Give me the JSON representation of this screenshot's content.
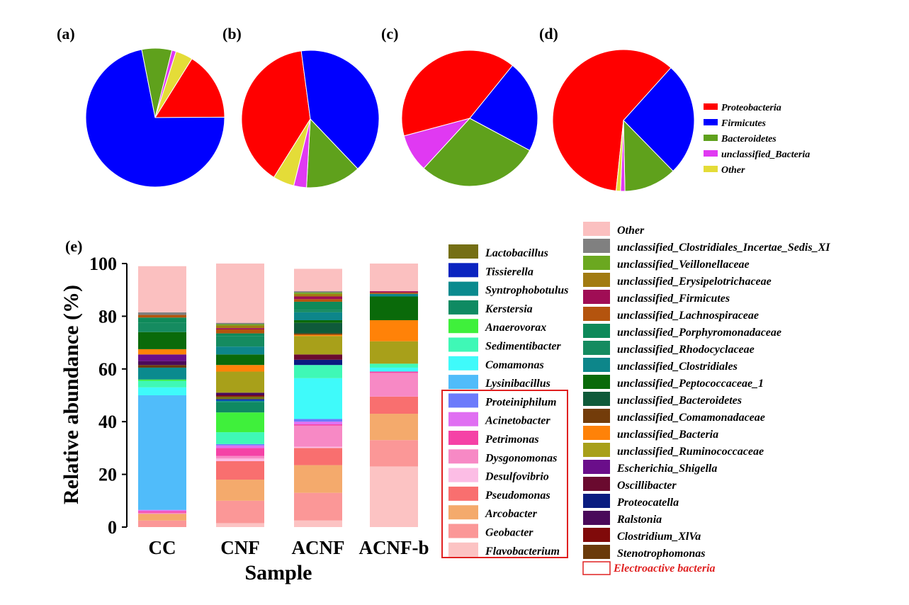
{
  "panel_labels": [
    "(a)",
    "(b)",
    "(c)",
    "(d)",
    "(e)"
  ],
  "chart_data": [
    {
      "type": "pie",
      "panel": "(a)",
      "labels": [
        "Proteobacteria",
        "Firmicutes",
        "Bacteroidetes",
        "unclassified_Bacteria",
        "Other"
      ],
      "values": [
        16,
        72,
        7,
        1,
        4
      ]
    },
    {
      "type": "pie",
      "panel": "(b)",
      "labels": [
        "Proteobacteria",
        "Firmicutes",
        "Bacteroidetes",
        "unclassified_Bacteria",
        "Other"
      ],
      "values": [
        39,
        40,
        13,
        3,
        5
      ]
    },
    {
      "type": "pie",
      "panel": "(c)",
      "labels": [
        "Proteobacteria",
        "Firmicutes",
        "Bacteroidetes",
        "unclassified_Bacteria",
        "Other"
      ],
      "values": [
        40,
        22,
        29,
        9,
        0
      ]
    },
    {
      "type": "pie",
      "panel": "(d)",
      "labels": [
        "Proteobacteria",
        "Firmicutes",
        "Bacteroidetes",
        "unclassified_Bacteria",
        "Other"
      ],
      "values": [
        60,
        26,
        12,
        1,
        1
      ]
    },
    {
      "type": "bar",
      "stacked": true,
      "panel": "(e)",
      "xlabel": "Sample",
      "ylabel": "Relative abundance (%)",
      "ylim": [
        0,
        100
      ],
      "yticks": [
        0,
        20,
        40,
        60,
        80,
        100
      ],
      "categories": [
        "CC",
        "CNF",
        "ACNF",
        "ACNF-b"
      ],
      "series": [
        {
          "name": "Flavobacterium",
          "values": [
            0,
            1.5,
            2.5,
            23
          ]
        },
        {
          "name": "Geobacter",
          "values": [
            2.5,
            8.5,
            10.5,
            10
          ]
        },
        {
          "name": "Arcobacter",
          "values": [
            2.5,
            8,
            10.5,
            10
          ]
        },
        {
          "name": "Pseudomonas",
          "values": [
            0,
            7,
            6.5,
            6.5
          ]
        },
        {
          "name": "Desulfovibrio",
          "values": [
            0,
            1,
            0.5,
            0
          ]
        },
        {
          "name": "Dysgonomonas",
          "values": [
            0.5,
            1,
            8,
            9
          ]
        },
        {
          "name": "Petrimonas",
          "values": [
            0.5,
            3,
            0.5,
            0.5
          ]
        },
        {
          "name": "Acinetobacter",
          "values": [
            0.5,
            1,
            1,
            0
          ]
        },
        {
          "name": "Proteiniphilum",
          "values": [
            0,
            0.5,
            1,
            0
          ]
        },
        {
          "name": "Lysinibacillus",
          "values": [
            43.5,
            0,
            0,
            0
          ]
        },
        {
          "name": "Comamonas",
          "values": [
            3,
            0,
            15.5,
            1.5
          ]
        },
        {
          "name": "Sedimentibacter",
          "values": [
            2.5,
            4.5,
            5,
            1.5
          ]
        },
        {
          "name": "Anaerovorax",
          "values": [
            0.5,
            7.5,
            0,
            0
          ]
        },
        {
          "name": "Kerstersia",
          "values": [
            0,
            4,
            0,
            0
          ]
        },
        {
          "name": "Syntrophobotulus",
          "values": [
            4.5,
            0.5,
            0,
            0
          ]
        },
        {
          "name": "Tissierella",
          "values": [
            0,
            0.5,
            0,
            0
          ]
        },
        {
          "name": "Lactobacillus",
          "values": [
            0,
            1,
            0,
            0
          ]
        },
        {
          "name": "Stenotrophomonas",
          "values": [
            1,
            0,
            0,
            0
          ]
        },
        {
          "name": "Clostridium_XlVa",
          "values": [
            0,
            0.5,
            0,
            0
          ]
        },
        {
          "name": "Ralstonia",
          "values": [
            1.5,
            1,
            0,
            0
          ]
        },
        {
          "name": "Proteocatella",
          "values": [
            0,
            0,
            2,
            0
          ]
        },
        {
          "name": "Oscillibacter",
          "values": [
            0,
            0,
            2,
            0
          ]
        },
        {
          "name": "Escherichia_Shigella",
          "values": [
            2.5,
            0,
            0,
            0
          ]
        },
        {
          "name": "unclassified_Ruminococcaceae",
          "values": [
            0,
            8,
            7,
            8.5
          ]
        },
        {
          "name": "unclassified_Bacteria",
          "values": [
            2,
            2.5,
            0.5,
            8
          ]
        },
        {
          "name": "unclassified_Comamonadaceae",
          "values": [
            0,
            0,
            0.5,
            0
          ]
        },
        {
          "name": "unclassified_Bacteroidetes",
          "values": [
            0,
            0,
            4,
            0
          ]
        },
        {
          "name": "unclassified_Peptococcaceae_1",
          "values": [
            6.5,
            4,
            1,
            9
          ]
        },
        {
          "name": "unclassified_Clostridiales",
          "values": [
            0,
            3,
            3,
            1
          ]
        },
        {
          "name": "unclassified_Rhodocyclaceae",
          "values": [
            3.5,
            4,
            1,
            0
          ]
        },
        {
          "name": "unclassified_Porphyromonadaceae",
          "values": [
            2,
            1,
            3,
            0
          ]
        },
        {
          "name": "unclassified_Lachnospiraceae",
          "values": [
            1,
            1.5,
            1,
            0.5
          ]
        },
        {
          "name": "unclassified_Firmicutes",
          "values": [
            0,
            0.5,
            1,
            0.5
          ]
        },
        {
          "name": "unclassified_Erysipelotrichaceae",
          "values": [
            0,
            1,
            1,
            0
          ]
        },
        {
          "name": "unclassified_Veillonellaceae",
          "values": [
            0,
            0.5,
            0.5,
            0
          ]
        },
        {
          "name": "unclassified_Clostridiales_Incertae_Sedis_XI",
          "values": [
            1,
            0.5,
            0.5,
            0
          ]
        },
        {
          "name": "Other",
          "values": [
            17.5,
            22.5,
            8.5,
            10.5
          ]
        }
      ]
    }
  ],
  "pie_legend": {
    "items": [
      {
        "label": "Proteobacteria",
        "color": "#FF0000"
      },
      {
        "label": "Firmicutes",
        "color": "#0000FF"
      },
      {
        "label": "Bacteroidetes",
        "color": "#5FA11C"
      },
      {
        "label": "unclassified_Bacteria",
        "color": "#E039F2"
      },
      {
        "label": "Other",
        "color": "#E4DC38"
      }
    ]
  },
  "bar_legend": {
    "electroactive_note": "Electroactive bacteria",
    "electroactive_color": "#E02020",
    "col1": [
      {
        "label": "Lactobacillus",
        "color": "#756F15"
      },
      {
        "label": "Tissierella",
        "color": "#0A24C0"
      },
      {
        "label": "Syntrophobotulus",
        "color": "#0A8A8E"
      },
      {
        "label": "Kerstersia",
        "color": "#0F8A62"
      },
      {
        "label": "Anaerovorax",
        "color": "#3FF03B"
      },
      {
        "label": "Sedimentibacter",
        "color": "#3FF8B6"
      },
      {
        "label": "Comamonas",
        "color": "#3FFAFA"
      },
      {
        "label": "Lysinibacillus",
        "color": "#50BCFA"
      },
      {
        "label": "Proteiniphilum",
        "color": "#6C7BFB",
        "electroactive": true
      },
      {
        "label": "Acinetobacter",
        "color": "#E06FF2",
        "electroactive": true
      },
      {
        "label": "Petrimonas",
        "color": "#F542A6",
        "electroactive": true
      },
      {
        "label": "Dysgonomonas",
        "color": "#F789C5",
        "electroactive": true
      },
      {
        "label": "Desulfovibrio",
        "color": "#FCBDE5",
        "electroactive": true
      },
      {
        "label": "Pseudomonas",
        "color": "#F96F6F",
        "electroactive": true
      },
      {
        "label": "Arcobacter",
        "color": "#F4AA6C",
        "electroactive": true
      },
      {
        "label": "Geobacter",
        "color": "#FB9797",
        "electroactive": true
      },
      {
        "label": "Flavobacterium",
        "color": "#FCC3C3",
        "electroactive": true
      }
    ],
    "col2": [
      {
        "label": "Other",
        "color": "#FBC0C0"
      },
      {
        "label": "unclassified_Clostridiales_Incertae_Sedis_XI",
        "color": "#808080"
      },
      {
        "label": "unclassified_Veillonellaceae",
        "color": "#6BA820"
      },
      {
        "label": "unclassified_Erysipelotrichaceae",
        "color": "#A27B12"
      },
      {
        "label": "unclassified_Firmicutes",
        "color": "#A00D55"
      },
      {
        "label": "unclassified_Lachnospiraceae",
        "color": "#B4540E"
      },
      {
        "label": "unclassified_Porphyromonadaceae",
        "color": "#0E8A5A"
      },
      {
        "label": "unclassified_Rhodocyclaceae",
        "color": "#158B60"
      },
      {
        "label": "unclassified_Clostridiales",
        "color": "#0D868A"
      },
      {
        "label": "unclassified_Peptococcaceae_1",
        "color": "#0A6A0A"
      },
      {
        "label": "unclassified_Bacteroidetes",
        "color": "#0F5A3A"
      },
      {
        "label": "unclassified_Comamonadaceae",
        "color": "#733C0A"
      },
      {
        "label": "unclassified_Bacteria",
        "color": "#FF8208"
      },
      {
        "label": "unclassified_Ruminococcaceae",
        "color": "#A8A01A"
      },
      {
        "label": "Escherichia_Shigella",
        "color": "#6A0E8A"
      },
      {
        "label": "Oscillibacter",
        "color": "#6A0A2F"
      },
      {
        "label": "Proteocatella",
        "color": "#0A1C80"
      },
      {
        "label": "Ralstonia",
        "color": "#4A0A5A"
      },
      {
        "label": "Clostridium_XlVa",
        "color": "#800A0A"
      },
      {
        "label": "Stenotrophomonas",
        "color": "#6A3A0A"
      }
    ]
  }
}
